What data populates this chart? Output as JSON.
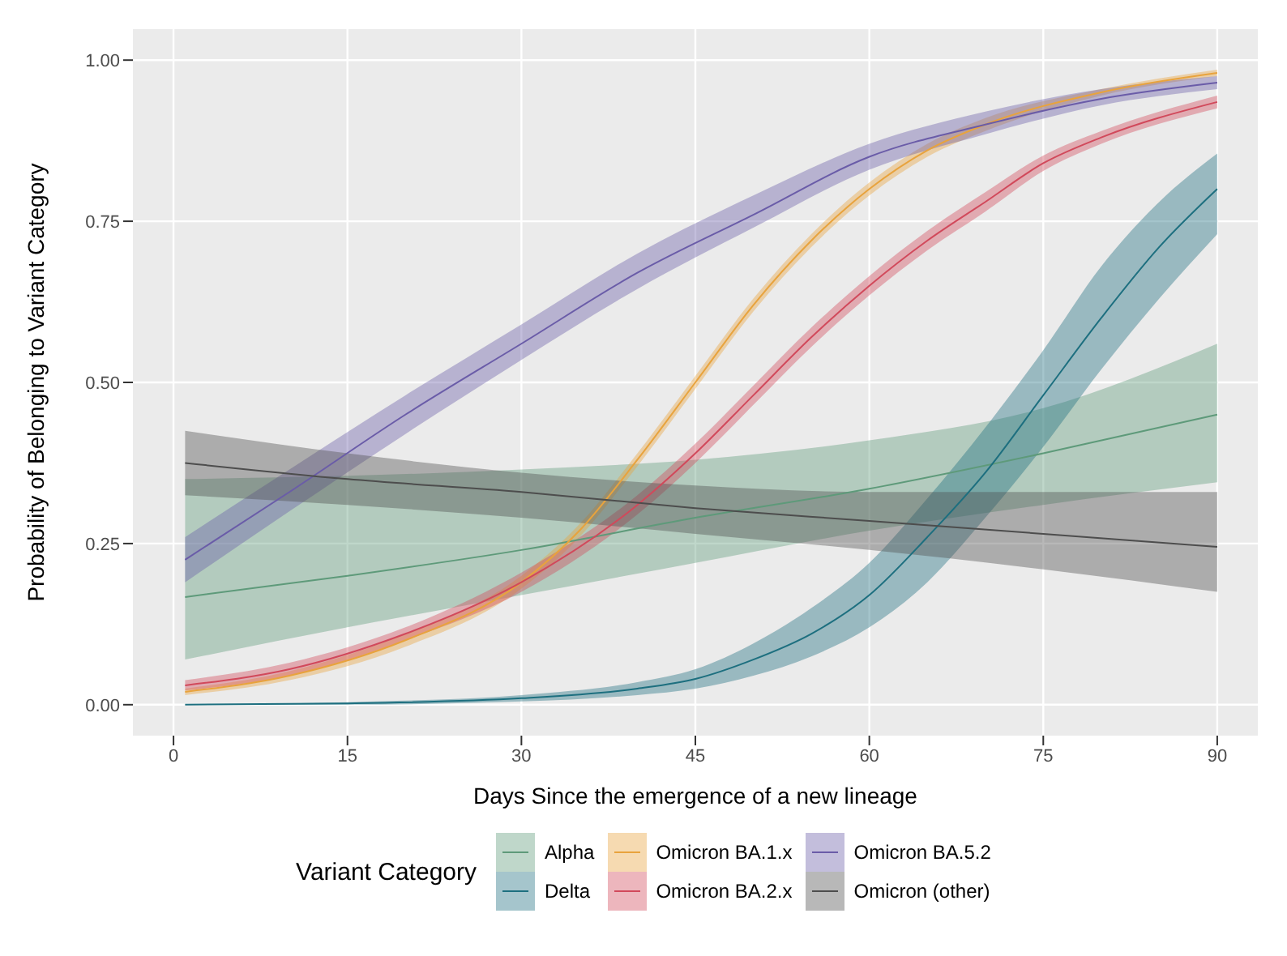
{
  "chart_data": {
    "type": "line",
    "xlabel": "Days Since the emergence of a new lineage",
    "ylabel": "Probability of Belonging to Variant Category",
    "legend_title": "Variant Category",
    "legend": "bottom",
    "grid": true,
    "marker": "none",
    "line_style": "solid",
    "xlim": [
      -3.5,
      93.5
    ],
    "xticks": [
      0,
      15,
      30,
      45,
      60,
      75,
      90
    ],
    "ylim": [
      -0.048,
      1.048
    ],
    "yticks": [
      {
        "value": 0,
        "label": "0.00"
      },
      0.25,
      {
        "value": 0.5,
        "label": "0.50"
      },
      0.75,
      {
        "value": 1,
        "label": "1.00"
      }
    ],
    "series": [
      {
        "name": "Alpha",
        "color": "#5e9a7a",
        "x": [
          1,
          15,
          30,
          45,
          60,
          75,
          90
        ],
        "values": [
          0.167,
          0.2,
          0.24,
          0.29,
          0.335,
          0.39,
          0.45
        ],
        "lower": [
          0.07,
          0.12,
          0.17,
          0.22,
          0.27,
          0.31,
          0.345
        ],
        "upper": [
          0.35,
          0.355,
          0.365,
          0.38,
          0.41,
          0.46,
          0.56
        ]
      },
      {
        "name": "Delta",
        "color": "#1d6f7f",
        "x": [
          1,
          15,
          30,
          40,
          45,
          50,
          55,
          60,
          65,
          70,
          75,
          80,
          85,
          90
        ],
        "values": [
          0,
          0.002,
          0.01,
          0.025,
          0.04,
          0.07,
          0.11,
          0.17,
          0.26,
          0.36,
          0.48,
          0.6,
          0.71,
          0.8
        ],
        "lower": [
          0,
          0,
          0.005,
          0.015,
          0.025,
          0.045,
          0.075,
          0.12,
          0.19,
          0.29,
          0.4,
          0.52,
          0.63,
          0.73
        ],
        "upper": [
          0,
          0.004,
          0.015,
          0.035,
          0.055,
          0.095,
          0.15,
          0.22,
          0.32,
          0.43,
          0.55,
          0.68,
          0.78,
          0.855
        ]
      },
      {
        "name": "Omicron BA.1.x",
        "color": "#e8a33d",
        "x": [
          1,
          10,
          20,
          30,
          35,
          40,
          45,
          50,
          55,
          60,
          65,
          70,
          80,
          90
        ],
        "values": [
          0.02,
          0.045,
          0.1,
          0.19,
          0.27,
          0.38,
          0.5,
          0.62,
          0.72,
          0.8,
          0.86,
          0.9,
          0.95,
          0.98
        ],
        "lower": [
          0.015,
          0.038,
          0.09,
          0.18,
          0.26,
          0.37,
          0.49,
          0.61,
          0.71,
          0.79,
          0.85,
          0.89,
          0.945,
          0.975
        ],
        "upper": [
          0.025,
          0.052,
          0.11,
          0.2,
          0.28,
          0.39,
          0.51,
          0.63,
          0.73,
          0.81,
          0.87,
          0.91,
          0.955,
          0.985
        ]
      },
      {
        "name": "Omicron BA.2.x",
        "color": "#d1495b",
        "x": [
          1,
          10,
          20,
          30,
          40,
          45,
          50,
          55,
          60,
          65,
          70,
          75,
          80,
          90
        ],
        "values": [
          0.03,
          0.055,
          0.11,
          0.19,
          0.31,
          0.39,
          0.48,
          0.57,
          0.65,
          0.72,
          0.78,
          0.84,
          0.88,
          0.935
        ],
        "lower": [
          0.022,
          0.045,
          0.1,
          0.175,
          0.295,
          0.375,
          0.465,
          0.555,
          0.635,
          0.705,
          0.765,
          0.828,
          0.87,
          0.925
        ],
        "upper": [
          0.038,
          0.065,
          0.12,
          0.205,
          0.325,
          0.405,
          0.495,
          0.585,
          0.665,
          0.735,
          0.795,
          0.852,
          0.89,
          0.945
        ]
      },
      {
        "name": "Omicron BA.5.2",
        "color": "#6a5ca8",
        "x": [
          1,
          10,
          20,
          30,
          40,
          50,
          60,
          70,
          80,
          90
        ],
        "values": [
          0.225,
          0.33,
          0.45,
          0.56,
          0.67,
          0.76,
          0.85,
          0.9,
          0.94,
          0.965
        ],
        "lower": [
          0.19,
          0.3,
          0.42,
          0.535,
          0.645,
          0.74,
          0.83,
          0.885,
          0.93,
          0.955
        ],
        "upper": [
          0.26,
          0.365,
          0.48,
          0.59,
          0.7,
          0.79,
          0.87,
          0.92,
          0.955,
          0.975
        ]
      },
      {
        "name": "Omicron (other)",
        "color": "#4d4d4d",
        "x": [
          1,
          15,
          30,
          45,
          60,
          75,
          90
        ],
        "values": [
          0.375,
          0.35,
          0.33,
          0.305,
          0.285,
          0.265,
          0.245
        ],
        "lower": [
          0.325,
          0.31,
          0.29,
          0.265,
          0.24,
          0.21,
          0.175
        ],
        "upper": [
          0.425,
          0.39,
          0.36,
          0.34,
          0.33,
          0.33,
          0.33
        ]
      }
    ]
  }
}
